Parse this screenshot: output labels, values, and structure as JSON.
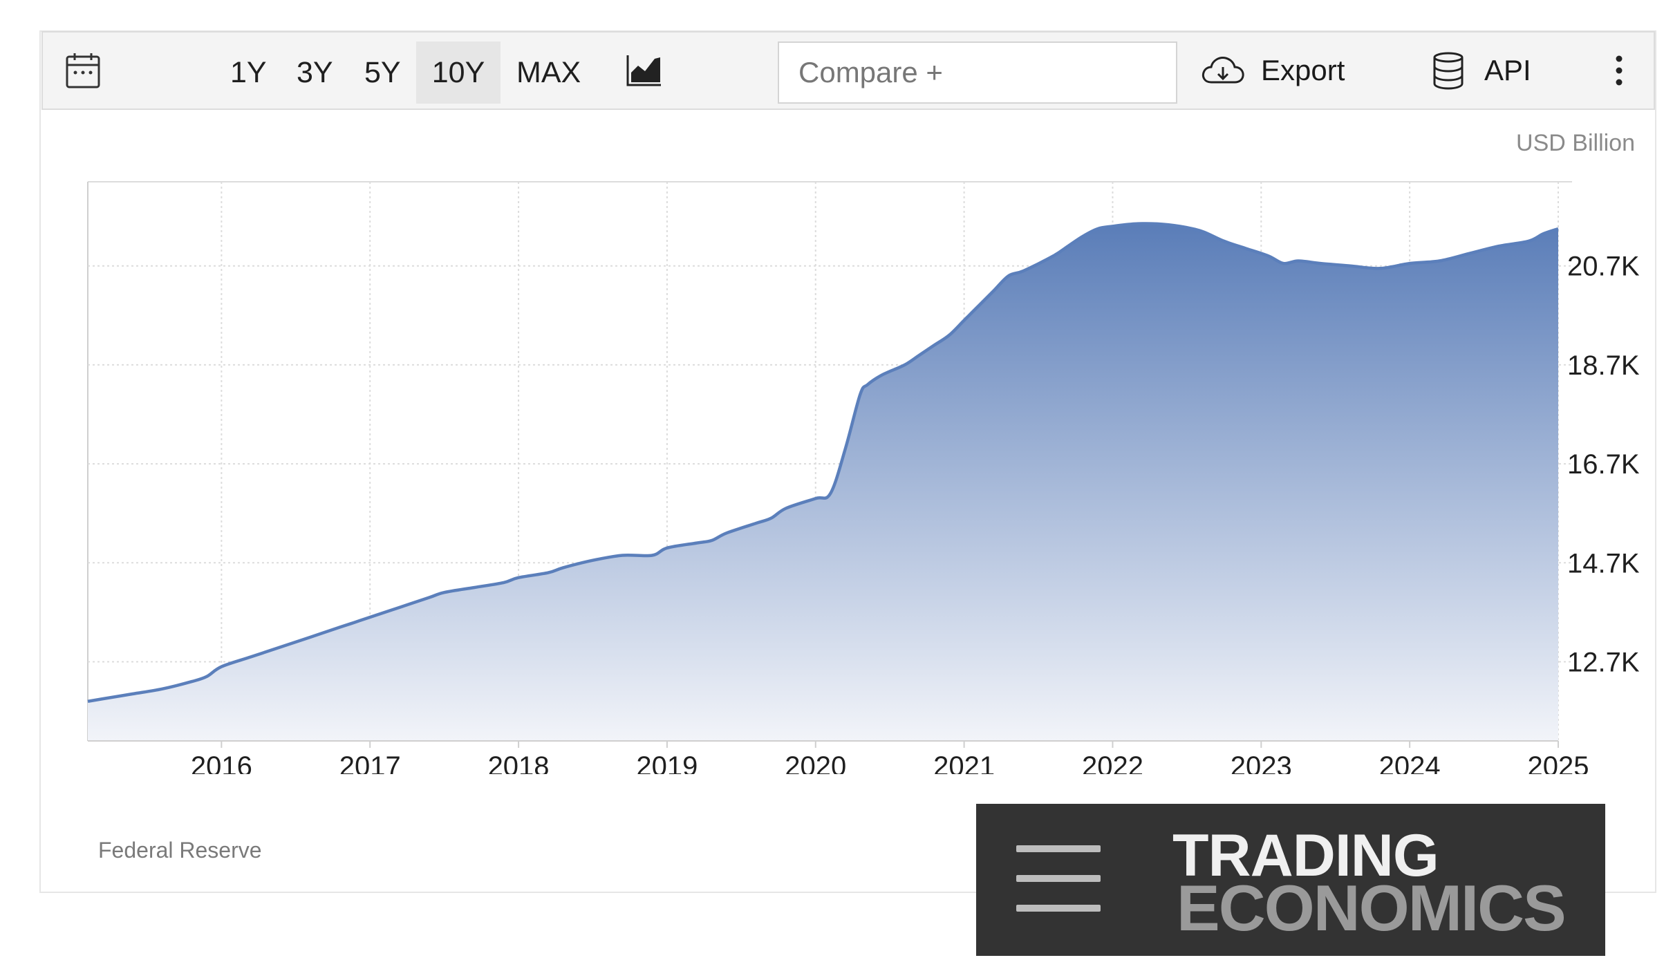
{
  "toolbar": {
    "calendar_icon": "calendar-icon",
    "ranges": [
      {
        "label": "1Y",
        "active": false
      },
      {
        "label": "3Y",
        "active": false
      },
      {
        "label": "5Y",
        "active": false
      },
      {
        "label": "10Y",
        "active": true
      },
      {
        "label": "MAX",
        "active": false
      }
    ],
    "chart_type_icon": "area-chart-icon",
    "compare_placeholder": "Compare +",
    "export_label": "Export",
    "export_icon": "cloud-download-icon",
    "api_label": "API",
    "api_icon": "database-icon",
    "more_icon": "more-vertical-icon"
  },
  "unit_label": "USD Billion",
  "source": "Federal Reserve",
  "logo": {
    "line1": "TRADING",
    "line2": "ECONOMICS"
  },
  "colors": {
    "series": "#5b7fbb",
    "fill_top": "#5a7db8",
    "fill_bottom": "#f2f4f9",
    "grid": "#dcdcdc"
  },
  "chart_data": {
    "type": "area",
    "title": "",
    "xlabel": "",
    "ylabel": "USD Billion",
    "y_ticks": [
      12.7,
      14.7,
      16.7,
      18.7,
      20.7
    ],
    "y_tick_labels": [
      "12.7K",
      "14.7K",
      "16.7K",
      "18.7K",
      "20.7K"
    ],
    "x_ticks": [
      2016,
      2017,
      2018,
      2019,
      2020,
      2021,
      2022,
      2023,
      2024,
      2025
    ],
    "x_tick_labels": [
      "2016",
      "2017",
      "2018",
      "2019",
      "2020",
      "2021",
      "2022",
      "2023",
      "2024",
      "2025"
    ],
    "xlim": [
      2015.1,
      2025.0
    ],
    "ylim": [
      11.1,
      22.4
    ],
    "grid": true,
    "y_axis_position": "right",
    "series": [
      {
        "x": [
          2015.1,
          2015.2,
          2015.4,
          2015.6,
          2015.8,
          2015.9,
          2016.0,
          2016.2,
          2016.4,
          2016.6,
          2016.8,
          2016.9,
          2017.0,
          2017.2,
          2017.4,
          2017.5,
          2017.7,
          2017.9,
          2018.0,
          2018.2,
          2018.3,
          2018.5,
          2018.7,
          2018.9,
          2019.0,
          2019.2,
          2019.3,
          2019.4,
          2019.6,
          2019.7,
          2019.8,
          2020.0,
          2020.1,
          2020.2,
          2020.3,
          2020.35,
          2020.45,
          2020.6,
          2020.7,
          2020.8,
          2020.9,
          2021.0,
          2021.1,
          2021.2,
          2021.3,
          2021.4,
          2021.6,
          2021.7,
          2021.8,
          2021.9,
          2022.0,
          2022.15,
          2022.3,
          2022.45,
          2022.6,
          2022.75,
          2022.9,
          2023.05,
          2023.15,
          2023.25,
          2023.4,
          2023.6,
          2023.8,
          2024.0,
          2024.2,
          2024.4,
          2024.6,
          2024.8,
          2024.9,
          2025.0
        ],
        "y": [
          11.9,
          11.95,
          12.05,
          12.15,
          12.3,
          12.4,
          12.6,
          12.8,
          13.0,
          13.2,
          13.4,
          13.5,
          13.6,
          13.8,
          14.0,
          14.1,
          14.2,
          14.3,
          14.4,
          14.5,
          14.6,
          14.75,
          14.85,
          14.85,
          15.0,
          15.1,
          15.15,
          15.3,
          15.5,
          15.6,
          15.8,
          16.0,
          16.1,
          17.0,
          18.1,
          18.3,
          18.5,
          18.7,
          18.9,
          19.1,
          19.3,
          19.6,
          19.9,
          20.2,
          20.5,
          20.6,
          20.9,
          21.1,
          21.3,
          21.45,
          21.5,
          21.55,
          21.55,
          21.5,
          21.4,
          21.2,
          21.05,
          20.9,
          20.75,
          20.8,
          20.75,
          20.7,
          20.65,
          20.75,
          20.8,
          20.95,
          21.1,
          21.2,
          21.35,
          21.45
        ]
      }
    ]
  }
}
